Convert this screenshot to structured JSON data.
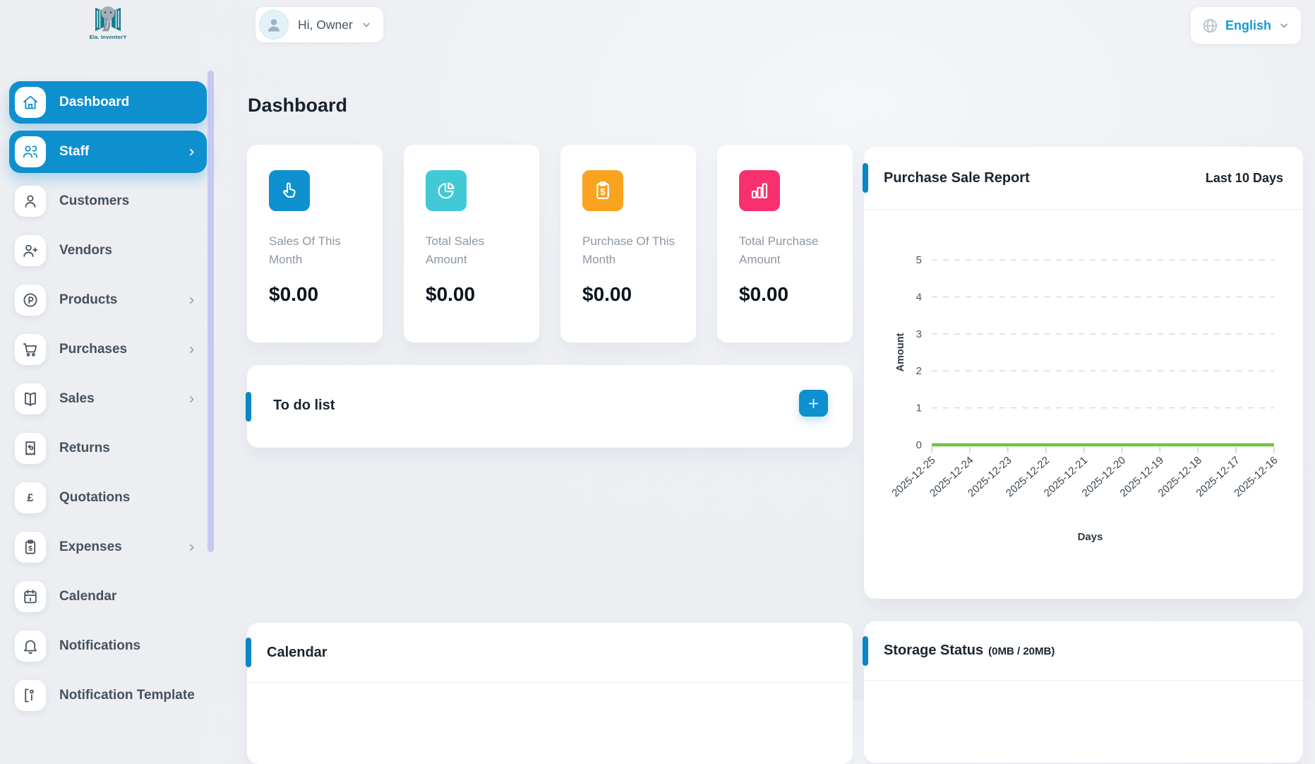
{
  "brand": {
    "name": "Ela. InventorY",
    "logo_icon": "elephant-logo-icon"
  },
  "header": {
    "user_greeting": "Hi, Owner",
    "user_avatar_icon": "person-icon",
    "user_chevron_icon": "chevron-down-icon",
    "language_label": "English",
    "language_icon": "globe-icon",
    "language_chevron_icon": "chevron-down-icon"
  },
  "page": {
    "title": "Dashboard"
  },
  "sidebar": {
    "active_color": "#0e90cf",
    "items": [
      {
        "label": "Dashboard",
        "icon": "home-icon",
        "active": true,
        "has_submenu": false
      },
      {
        "label": "Staff",
        "icon": "users-icon",
        "active": true,
        "has_submenu": true
      },
      {
        "label": "Customers",
        "icon": "user-icon",
        "active": false,
        "has_submenu": false
      },
      {
        "label": "Vendors",
        "icon": "user-plus-icon",
        "active": false,
        "has_submenu": false
      },
      {
        "label": "Products",
        "icon": "product-p-icon",
        "active": false,
        "has_submenu": true
      },
      {
        "label": "Purchases",
        "icon": "cart-icon",
        "active": false,
        "has_submenu": true
      },
      {
        "label": "Sales",
        "icon": "book-icon",
        "active": false,
        "has_submenu": true
      },
      {
        "label": "Returns",
        "icon": "receipt-return-icon",
        "active": false,
        "has_submenu": false
      },
      {
        "label": "Quotations",
        "icon": "pound-icon",
        "active": false,
        "has_submenu": false
      },
      {
        "label": "Expenses",
        "icon": "clipboard-dollar-icon",
        "active": false,
        "has_submenu": true
      },
      {
        "label": "Calendar",
        "icon": "calendar-icon",
        "active": false,
        "has_submenu": false
      },
      {
        "label": "Notifications",
        "icon": "bell-icon",
        "active": false,
        "has_submenu": false
      },
      {
        "label": "Notification Template",
        "icon": "template-icon",
        "active": false,
        "has_submenu": false
      }
    ]
  },
  "stats": {
    "cards": [
      {
        "label": "Sales Of This Month",
        "value": "$0.00",
        "icon": "hand-pointer-icon",
        "color": "#0e90cf"
      },
      {
        "label": "Total Sales Amount",
        "value": "$0.00",
        "icon": "pie-chart-icon",
        "color": "#41c9d6"
      },
      {
        "label": "Purchase Of This Month",
        "value": "$0.00",
        "icon": "clipboard-dollar-icon",
        "color": "#f9a31f"
      },
      {
        "label": "Total Purchase Amount",
        "value": "$0.00",
        "icon": "bar-chart-icon",
        "color": "#f8316e"
      }
    ]
  },
  "todo": {
    "title": "To do list",
    "add_icon": "plus-icon"
  },
  "report": {
    "title": "Purchase Sale Report",
    "period": "Last 10 Days"
  },
  "calendar_card": {
    "title": "Calendar"
  },
  "storage": {
    "title": "Storage Status",
    "usage": "(0MB / 20MB)"
  },
  "chart_data": {
    "type": "line",
    "title": "Purchase Sale Report",
    "subtitle": "Last 10 Days",
    "x": [
      "2025-12-25",
      "2025-12-24",
      "2025-12-23",
      "2025-12-22",
      "2025-12-21",
      "2025-12-20",
      "2025-12-19",
      "2025-12-18",
      "2025-12-17",
      "2025-12-16"
    ],
    "series": [
      {
        "name": "Amount",
        "color": "#70c247",
        "values": [
          0,
          0,
          0,
          0,
          0,
          0,
          0,
          0,
          0,
          0
        ]
      }
    ],
    "xlabel": "Days",
    "ylabel": "Amount",
    "ylim": [
      0,
      5
    ],
    "yticks": [
      0,
      1,
      2,
      3,
      4,
      5
    ],
    "grid": "dashed-horizontal",
    "legend_position": "none"
  }
}
